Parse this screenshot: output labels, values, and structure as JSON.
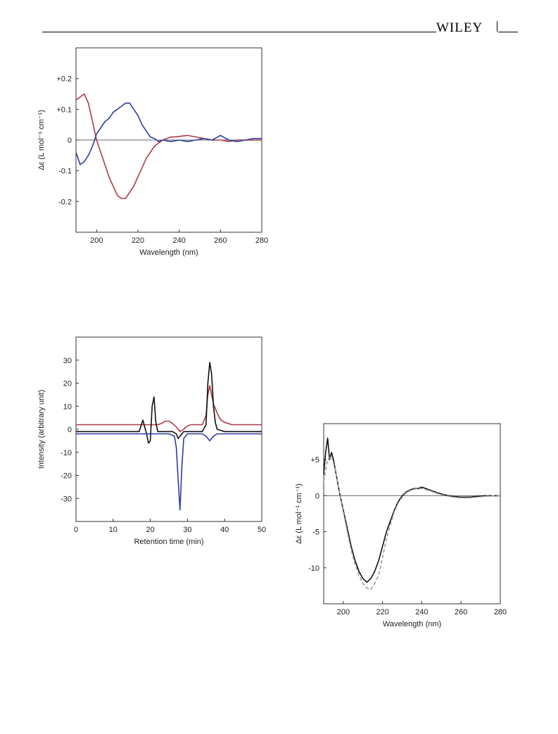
{
  "header": {
    "publisher": "WILEY"
  },
  "chart_data": [
    {
      "type": "line",
      "xlabel": "Wavelength (nm)",
      "ylabel": "Δε (L mol⁻¹ cm⁻¹)",
      "xlim": [
        190,
        280
      ],
      "ylim": [
        -0.3,
        0.3
      ],
      "xticks": [
        200,
        220,
        240,
        260,
        280
      ],
      "yticks": [
        {
          "v": 0.2,
          "label": "+0.2"
        },
        {
          "v": 0.1,
          "label": "+0.1"
        },
        {
          "v": 0,
          "label": "0"
        },
        {
          "v": -0.1,
          "label": "-0.1"
        },
        {
          "v": -0.2,
          "label": "-0.2"
        }
      ],
      "zero_line": true,
      "series": [
        {
          "color": "#b03a48",
          "x": [
            190,
            192,
            194,
            196,
            198,
            200,
            202,
            204,
            206,
            208,
            210,
            212,
            214,
            216,
            218,
            220,
            222,
            224,
            226,
            228,
            230,
            232,
            234,
            236,
            238,
            240,
            244,
            248,
            252,
            256,
            260,
            264,
            268,
            272,
            276,
            280
          ],
          "y": [
            0.13,
            0.14,
            0.15,
            0.12,
            0.06,
            0.0,
            -0.04,
            -0.08,
            -0.12,
            -0.15,
            -0.18,
            -0.19,
            -0.19,
            -0.17,
            -0.15,
            -0.12,
            -0.09,
            -0.06,
            -0.04,
            -0.02,
            -0.01,
            0.0,
            0.005,
            0.01,
            0.01,
            0.012,
            0.015,
            0.01,
            0.005,
            0.0,
            0.0,
            -0.005,
            0.0,
            0.0,
            0.0,
            0.0
          ]
        },
        {
          "color": "#2c3e9e",
          "x": [
            190,
            192,
            194,
            196,
            198,
            200,
            202,
            204,
            206,
            208,
            210,
            212,
            214,
            216,
            218,
            220,
            222,
            224,
            226,
            228,
            230,
            232,
            236,
            240,
            244,
            248,
            252,
            256,
            260,
            264,
            268,
            272,
            276,
            280
          ],
          "y": [
            -0.04,
            -0.08,
            -0.07,
            -0.05,
            -0.02,
            0.02,
            0.04,
            0.06,
            0.07,
            0.09,
            0.1,
            0.11,
            0.12,
            0.12,
            0.1,
            0.08,
            0.05,
            0.03,
            0.01,
            0.005,
            -0.005,
            0.0,
            -0.005,
            0.0,
            -0.005,
            0.0,
            0.005,
            0.0,
            0.015,
            0.0,
            -0.005,
            0.0,
            0.005,
            0.005
          ]
        }
      ]
    },
    {
      "type": "line",
      "xlabel": "Retention time (min)",
      "ylabel": "Intensity (arbitrary unit)",
      "xlim": [
        0,
        50
      ],
      "ylim": [
        -40,
        40
      ],
      "xticks": [
        0,
        10,
        20,
        30,
        40,
        50
      ],
      "yticks": [
        {
          "v": 30,
          "label": "30"
        },
        {
          "v": 20,
          "label": "20"
        },
        {
          "v": 10,
          "label": "10"
        },
        {
          "v": 0,
          "label": "0"
        },
        {
          "v": -10,
          "label": "-10"
        },
        {
          "v": -20,
          "label": "-20"
        },
        {
          "v": -30,
          "label": "-30"
        }
      ],
      "zero_line": false,
      "series": [
        {
          "color": "#b03a48",
          "x": [
            0,
            10,
            17,
            22,
            23,
            24,
            25,
            26,
            27,
            28,
            29,
            30,
            31,
            32,
            33,
            34,
            35,
            35.5,
            36,
            36.5,
            37,
            38,
            39,
            40,
            42,
            44,
            46,
            50
          ],
          "y": [
            2,
            2,
            2,
            2,
            2.5,
            3.5,
            3.5,
            2.5,
            1,
            -1,
            0,
            1.5,
            2,
            2,
            2,
            2,
            6,
            15,
            19,
            15,
            11,
            7,
            4,
            3,
            2,
            2,
            2,
            2
          ]
        },
        {
          "color": "#111111",
          "x": [
            0,
            10,
            17,
            18,
            19,
            19.5,
            20,
            20.5,
            21,
            21.5,
            22,
            23,
            25,
            26,
            27,
            27.5,
            28,
            29,
            30,
            32,
            34,
            35,
            35.5,
            36,
            36.5,
            37,
            37.5,
            38,
            40,
            44,
            50
          ],
          "y": [
            -1,
            -1,
            -1,
            4,
            -2,
            -6,
            -5,
            10,
            14,
            3,
            -1,
            -1,
            -1,
            -1,
            -2,
            -4,
            -3,
            -1,
            -1,
            -1,
            -1,
            2,
            20,
            29,
            24,
            10,
            3,
            0,
            -1,
            -1,
            -1
          ]
        },
        {
          "color": "#2c3e9e",
          "x": [
            0,
            10,
            20,
            25,
            26.5,
            27,
            27.5,
            28,
            28.5,
            29,
            30,
            32,
            34,
            35,
            36,
            37,
            38,
            40,
            44,
            50
          ],
          "y": [
            -2,
            -2,
            -2,
            -2,
            -3,
            -8,
            -22,
            -35,
            -16,
            -4,
            -2,
            -2,
            -2,
            -3,
            -5,
            -3,
            -2,
            -2,
            -2,
            -2
          ]
        }
      ]
    },
    {
      "type": "line",
      "xlabel": "Wavelength (nm)",
      "ylabel": "Δε (L mol⁻¹ cm⁻¹)",
      "xlim": [
        190,
        280
      ],
      "ylim": [
        -15,
        10
      ],
      "xticks": [
        200,
        220,
        240,
        260,
        280
      ],
      "yticks": [
        {
          "v": 5,
          "label": "+5"
        },
        {
          "v": 0,
          "label": "0"
        },
        {
          "v": -5,
          "label": "-5"
        },
        {
          "v": -10,
          "label": "-10"
        }
      ],
      "zero_line": true,
      "series": [
        {
          "color": "#111111",
          "dash": false,
          "x": [
            190,
            191,
            192,
            193,
            194,
            195,
            196,
            198,
            200,
            202,
            204,
            206,
            208,
            210,
            212,
            214,
            216,
            218,
            220,
            222,
            224,
            226,
            228,
            230,
            232,
            234,
            236,
            238,
            240,
            244,
            248,
            252,
            256,
            260,
            264,
            268,
            272,
            276,
            280
          ],
          "y": [
            3,
            6,
            8,
            5,
            6,
            5,
            3.5,
            0.5,
            -2,
            -4.5,
            -7,
            -9,
            -10.5,
            -11.5,
            -12,
            -11.5,
            -10.5,
            -9,
            -7,
            -5,
            -3.5,
            -2,
            -0.8,
            0,
            0.5,
            0.8,
            1,
            1,
            1.2,
            0.8,
            0.4,
            0.1,
            -0.1,
            -0.2,
            -0.2,
            -0.1,
            0,
            0,
            0
          ]
        },
        {
          "color": "#999999",
          "dash": true,
          "x": [
            190,
            192,
            194,
            196,
            198,
            200,
            202,
            204,
            206,
            208,
            210,
            212,
            214,
            216,
            218,
            220,
            222,
            224,
            226,
            228,
            230,
            232,
            234,
            236,
            238,
            240,
            244,
            248,
            252,
            256,
            260,
            264,
            268,
            272,
            276,
            280
          ],
          "y": [
            2,
            5,
            5.5,
            3.5,
            0.5,
            -2.2,
            -5,
            -7.5,
            -9.5,
            -11,
            -12.2,
            -12.8,
            -13,
            -12.2,
            -11,
            -8.5,
            -6,
            -4,
            -2.2,
            -1,
            -0.2,
            0.4,
            0.7,
            0.9,
            1,
            1,
            0.7,
            0.3,
            0,
            -0.2,
            -0.3,
            -0.3,
            -0.2,
            -0.1,
            0,
            0
          ]
        }
      ]
    }
  ]
}
